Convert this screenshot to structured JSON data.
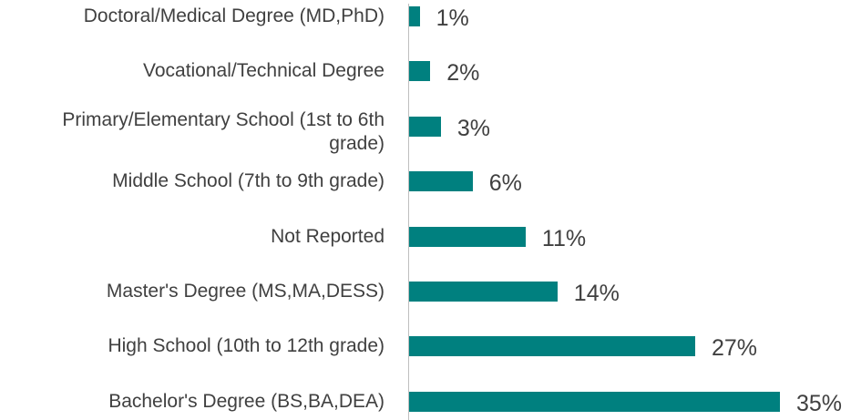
{
  "chart_data": {
    "type": "bar",
    "orientation": "horizontal",
    "categories": [
      "Doctoral/Medical Degree (MD,PhD)",
      "Vocational/Technical Degree",
      "Primary/Elementary School (1st to 6th grade)",
      "Middle School (7th to 9th grade)",
      "Not Reported",
      "Master's Degree (MS,MA,DESS)",
      "High School (10th to 12th grade)",
      "Bachelor's Degree (BS,BA,DEA)"
    ],
    "values": [
      1,
      2,
      3,
      6,
      11,
      14,
      27,
      35
    ],
    "value_labels": [
      "1%",
      "2%",
      "3%",
      "6%",
      "11%",
      "14%",
      "27%",
      "35%"
    ],
    "color": "#00807f"
  }
}
